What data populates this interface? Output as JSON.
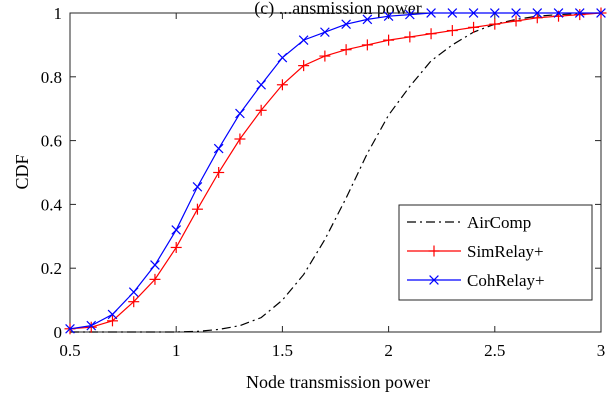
{
  "chart_data": {
    "type": "line",
    "title": "(c) ...ansmission power",
    "xlabel": "Node transmission power",
    "ylabel": "CDF",
    "xlim": [
      0.5,
      3
    ],
    "ylim": [
      0,
      1
    ],
    "xticks": [
      "0.5",
      "1",
      "1.5",
      "2",
      "2.5",
      "3"
    ],
    "xtick_values": [
      0.5,
      1,
      1.5,
      2,
      2.5,
      3
    ],
    "yticks": [
      "0",
      "0.2",
      "0.4",
      "0.6",
      "0.8",
      "1"
    ],
    "ytick_values": [
      0,
      0.2,
      0.4,
      0.6,
      0.8,
      1
    ],
    "grid": false,
    "legend_position": "bottom-right",
    "series": [
      {
        "name": "AirComp",
        "color": "#000000",
        "style": "dash-dot",
        "marker": "none",
        "x": [
          0.5,
          0.6,
          0.7,
          0.8,
          0.9,
          1.0,
          1.1,
          1.2,
          1.3,
          1.4,
          1.5,
          1.6,
          1.7,
          1.8,
          1.9,
          2.0,
          2.1,
          2.2,
          2.3,
          2.4,
          2.5,
          2.6,
          2.7,
          2.8,
          2.9,
          3.0
        ],
        "y": [
          0.0,
          0.0,
          0.0,
          0.0,
          0.0,
          0.0,
          0.002,
          0.008,
          0.02,
          0.045,
          0.1,
          0.18,
          0.29,
          0.42,
          0.56,
          0.68,
          0.77,
          0.85,
          0.9,
          0.94,
          0.965,
          0.98,
          0.99,
          0.995,
          0.998,
          1.0
        ]
      },
      {
        "name": "SimRelay+",
        "color": "#ff0000",
        "style": "solid",
        "marker": "plus",
        "x": [
          0.5,
          0.6,
          0.7,
          0.8,
          0.9,
          1.0,
          1.1,
          1.2,
          1.3,
          1.4,
          1.5,
          1.6,
          1.7,
          1.8,
          1.9,
          2.0,
          2.1,
          2.2,
          2.3,
          2.4,
          2.5,
          2.6,
          2.7,
          2.8,
          2.9,
          3.0
        ],
        "y": [
          0.01,
          0.015,
          0.035,
          0.095,
          0.165,
          0.265,
          0.385,
          0.5,
          0.605,
          0.695,
          0.775,
          0.835,
          0.865,
          0.885,
          0.9,
          0.915,
          0.925,
          0.935,
          0.945,
          0.955,
          0.965,
          0.975,
          0.985,
          0.99,
          0.995,
          1.0
        ]
      },
      {
        "name": "CohRelay+",
        "color": "#0000ff",
        "style": "solid",
        "marker": "x",
        "x": [
          0.5,
          0.6,
          0.7,
          0.8,
          0.9,
          1.0,
          1.1,
          1.2,
          1.3,
          1.4,
          1.5,
          1.6,
          1.7,
          1.8,
          1.9,
          2.0,
          2.1,
          2.2,
          2.3,
          2.4,
          2.5,
          2.6,
          2.7,
          2.8,
          2.9,
          3.0
        ],
        "y": [
          0.01,
          0.02,
          0.055,
          0.125,
          0.21,
          0.32,
          0.455,
          0.575,
          0.685,
          0.775,
          0.86,
          0.915,
          0.94,
          0.965,
          0.98,
          0.99,
          0.995,
          1.0,
          1.0,
          1.0,
          1.0,
          1.0,
          1.0,
          1.0,
          1.0,
          1.0
        ]
      }
    ]
  }
}
